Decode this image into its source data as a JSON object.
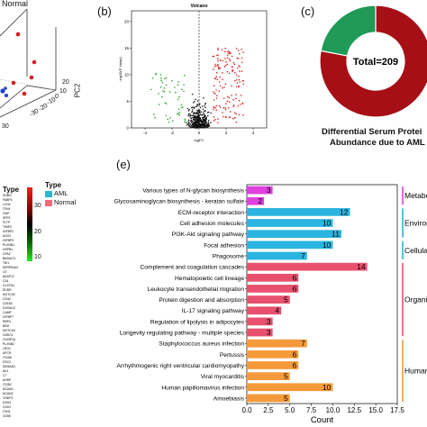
{
  "panel_a": {
    "legend_normal": "Normal",
    "axis_pc2": "PC2",
    "ticks": [
      "30",
      "-30",
      "-20",
      "-10",
      "0",
      "10",
      "20"
    ]
  },
  "panel_b": {
    "label": "(b)",
    "title": "Volcano",
    "xlabel": "logFC",
    "ylabel": "-log10(P Value)",
    "x_ticks": [
      "-4",
      "-2",
      "0",
      "2",
      "4"
    ],
    "y_ticks": [
      "0",
      "5",
      "10",
      "15",
      "20"
    ],
    "colors": {
      "down": "#22aa22",
      "up": "#dd2222",
      "ns": "#111111"
    }
  },
  "panel_c": {
    "label": "(c)",
    "center_text": "Total=209",
    "caption_line1": "Differential Serum Protei",
    "caption_line2": "Abundance due to AML",
    "slices": [
      {
        "color": "#a50f15",
        "fraction": 0.78
      },
      {
        "color": "#1f9a57",
        "fraction": 0.22
      }
    ]
  },
  "panel_d": {
    "type_label": "Type",
    "legend_title": "Type",
    "legend_items": [
      {
        "name": "AML",
        "color": "#2fb5d0"
      },
      {
        "name": "Normal",
        "color": "#f06b7c"
      }
    ],
    "scale_ticks": [
      "30",
      "20",
      "10"
    ],
    "genes": [
      "SHBG",
      "FABP4",
      "LCN2",
      "ITIH4",
      "VWF",
      "SPP1",
      "PLTP",
      "TIMP2",
      "IGFBP2",
      "AOX2",
      "IGFBP3",
      "PLXNB1",
      "HSPB1",
      "CPA2",
      "BASALT1",
      "TIE1",
      "SERPINA3",
      "C9",
      "AKAP12",
      "CA1",
      "CLSTN1",
      "EDDR",
      "NOTCH2",
      "CD44",
      "CD163",
      "S100A12",
      "CAMP",
      "IGFBP7",
      "RBP4",
      "B2M",
      "NOTCH3",
      "GSDC1",
      "CHI3P1A",
      "PLXNB2",
      "LRG1",
      "APCR",
      "ITGA5",
      "DSC2",
      "SEMA4D",
      "AK1",
      "C7",
      "AHSP",
      "ITGB2",
      "NCAM1",
      "NCAN2",
      "CNDP1",
      "DSG2",
      "CDH1",
      "ITIH3",
      "CD55"
    ]
  },
  "panel_e": {
    "label": "(e)",
    "xlabel": "Count",
    "x_ticks": [
      "0.0",
      "2.5",
      "5.0",
      "7.5",
      "10.0",
      "12.5",
      "15.0",
      "17.5"
    ],
    "categories": [
      {
        "name": "Metabo",
        "color": "#e040e0"
      },
      {
        "name": "Environ",
        "color": "#2bb4e0"
      },
      {
        "name": "Cellular",
        "color": "#2bb4e0"
      },
      {
        "name": "Organis",
        "color": "#e8506e"
      },
      {
        "name": "Human",
        "color": "#f59a3a"
      }
    ]
  },
  "chart_data": {
    "type": "bar",
    "orientation": "horizontal",
    "xlabel": "Count",
    "xlim": [
      0,
      17.5
    ],
    "bars": [
      {
        "label": "Various types of N-glycan biosynthesis",
        "value": 3,
        "group": "Metabo",
        "color": "#e040e0"
      },
      {
        "label": "Glycosaminoglycan biosynthesis - keratan sulfate",
        "value": 2,
        "group": "Metabo",
        "color": "#e040e0"
      },
      {
        "label": "ECM-receptor interaction",
        "value": 12,
        "group": "Environ",
        "color": "#2bb4e0"
      },
      {
        "label": "Cell adhesion molecules",
        "value": 10,
        "group": "Environ",
        "color": "#2bb4e0"
      },
      {
        "label": "PI3K-Akt signaling pathway",
        "value": 11,
        "group": "Environ",
        "color": "#2bb4e0"
      },
      {
        "label": "Focal adhesion",
        "value": 10,
        "group": "Cellular",
        "color": "#2bb4e0"
      },
      {
        "label": "Phagosome",
        "value": 7,
        "group": "Cellular",
        "color": "#2bb4e0"
      },
      {
        "label": "Complement and coagulation cascades",
        "value": 14,
        "group": "Organis",
        "color": "#e8506e"
      },
      {
        "label": "Hematopoietic cell lineage",
        "value": 6,
        "group": "Organis",
        "color": "#e8506e"
      },
      {
        "label": "Leukocyte transendothelial migration",
        "value": 6,
        "group": "Organis",
        "color": "#e8506e"
      },
      {
        "label": "Protein digestion and absorption",
        "value": 5,
        "group": "Organis",
        "color": "#e8506e"
      },
      {
        "label": "IL-17 signaling pathway",
        "value": 4,
        "group": "Organis",
        "color": "#e8506e"
      },
      {
        "label": "Regulation of lipolysis in adipocytes",
        "value": 3,
        "group": "Organis",
        "color": "#e8506e"
      },
      {
        "label": "Longevity regulating pathway - multiple species",
        "value": 3,
        "group": "Organis",
        "color": "#e8506e"
      },
      {
        "label": "Staphylococcus aureus infection",
        "value": 7,
        "group": "Human",
        "color": "#f59a3a"
      },
      {
        "label": "Pertussis",
        "value": 6,
        "group": "Human",
        "color": "#f59a3a"
      },
      {
        "label": "Arrhythmogenic right ventricular cardiomyopathy",
        "value": 6,
        "group": "Human",
        "color": "#f59a3a"
      },
      {
        "label": "Viral myocarditis",
        "value": 5,
        "group": "Human",
        "color": "#f59a3a"
      },
      {
        "label": "Human papillomavirus infection",
        "value": 10,
        "group": "Human",
        "color": "#f59a3a"
      },
      {
        "label": "Amoebiasis",
        "value": 5,
        "group": "Human",
        "color": "#f59a3a"
      }
    ]
  }
}
